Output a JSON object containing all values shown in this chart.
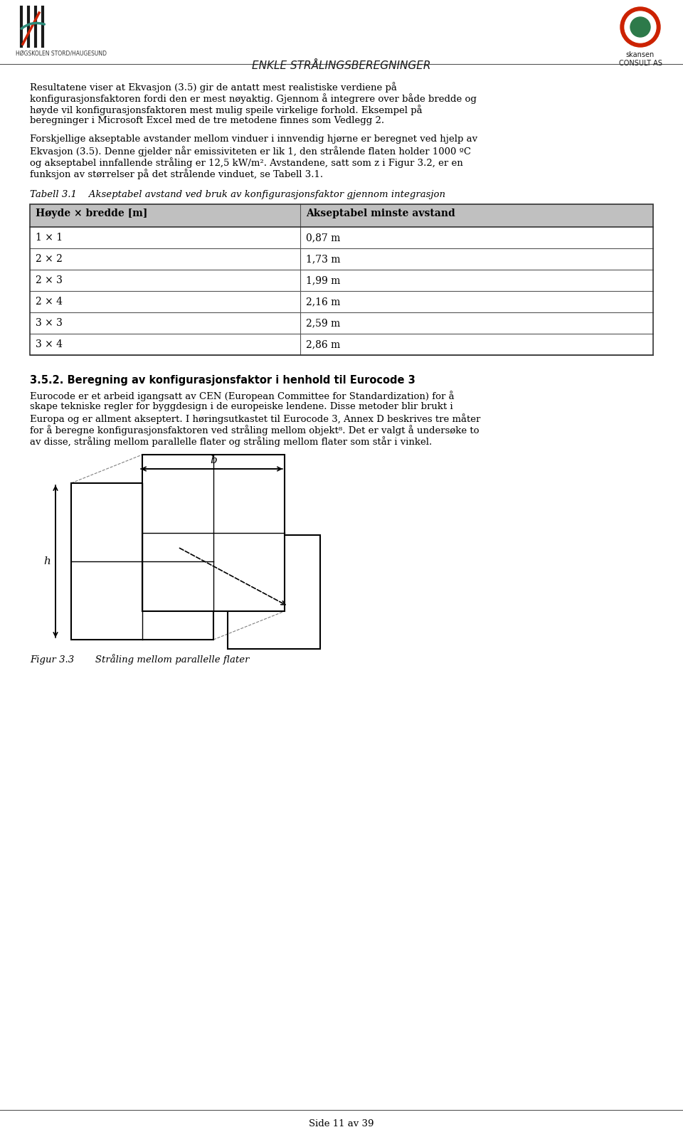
{
  "page_title": "ENKLE STRÅLINGSBEREGNINGER",
  "left_org": "HØGSKOLEN STORD/HAUGESUND",
  "right_org": "skansen\nCONSULT AS",
  "footer": "Side 11 av 39",
  "para1": "Resultatene viser at Ekvasjon (3.5) gir de antatt mest realistiske verdiene på konfigurasjonsfaktoren fordi den er mest nøyaktig. Gjennom å integrere over både bredde og høyde vil konfigurasjonsfaktoren mest mulig speile virkelige forhold. Eksempel på beregninger i Microsoft Excel med de tre metodene finnes som Vedlegg 2.",
  "para2": "Forskjellige akseptable avstander mellom vinduer i innvendig hjørne er beregnet ved hjelp av Ekvasjon (3.5). Denne gjelder når emissiviteten er lik 1, den strålende flaten holder 1000 ºC og akseptabel innfallende stråling er 12,5 kW/m². Avstandene, satt som z i Figur 3.2, er en funksjon av størrelser på det strålende vinduet, se Tabell 3.1.",
  "table_title": "Tabell 3.1    Akseptabel avstand ved bruk av konfigurasjonsfaktor gjennom integrasjon",
  "table_header": [
    "Høyde × bredde [m]",
    "Akseptabel minste avstand"
  ],
  "table_rows": [
    [
      "1 × 1",
      "0,87 m"
    ],
    [
      "2 × 2",
      "1,73 m"
    ],
    [
      "2 × 3",
      "1,99 m"
    ],
    [
      "2 × 4",
      "2,16 m"
    ],
    [
      "3 × 3",
      "2,59 m"
    ],
    [
      "3 × 4",
      "2,86 m"
    ]
  ],
  "section_title": "3.5.2. Beregning av konfigurasjonsfaktor i henhold til Eurocode 3",
  "para3": "Eurocode er et arbeid igangsatt av CEN (European Committee for Standardization) for å skape tekniske regler for byggdesign i de europeiske lendene. Disse metoder blir brukt i Europa og er allment akseptert. I høringsutkastet til Eurocode 3, Annex D beskrives tre måter for å beregne konfigurasjonsfaktoren ved stråling mellom objekt⁸. Det er valgt å undersøke to av disse, stråling mellom parallelle flater og stråling mellom flater som står i vinkel.",
  "fig_caption": "Figur 3.3       Stråling mellom parallelle flater",
  "bg_color": "#ffffff",
  "text_color": "#000000",
  "header_bg": "#c0c0c0",
  "table_line_color": "#000000",
  "header_line_color": "#1a1a1a"
}
